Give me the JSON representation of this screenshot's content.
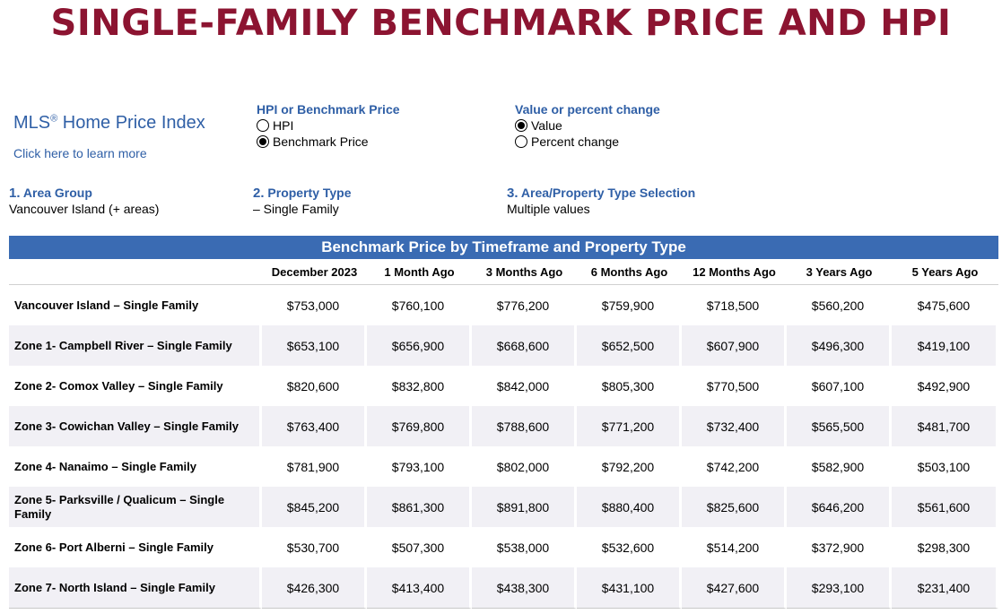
{
  "page_title": "SINGLE-FAMILY BENCHMARK PRICE AND HPI",
  "mls": {
    "title": "MLS",
    "registered": "®",
    "title_rest": " Home Price Index",
    "link": "Click here to learn more"
  },
  "hpi_toggle": {
    "title": "HPI or Benchmark Price",
    "options": [
      {
        "label": "HPI",
        "selected": false
      },
      {
        "label": "Benchmark Price",
        "selected": true
      }
    ]
  },
  "value_toggle": {
    "title": "Value or percent change",
    "options": [
      {
        "label": "Value",
        "selected": true
      },
      {
        "label": "Percent change",
        "selected": false
      }
    ]
  },
  "filters": [
    {
      "number": "1.",
      "label": "Area Group",
      "value": "Vancouver Island (+ areas)"
    },
    {
      "number": "2.",
      "label": "Property Type",
      "value": "– Single Family"
    },
    {
      "number": "3.",
      "label": "Area/Property Type Selection",
      "value": "Multiple values"
    }
  ],
  "table": {
    "title": "Benchmark Price by Timeframe and Property Type",
    "columns": [
      "December 2023",
      "1 Month Ago",
      "3 Months Ago",
      "6 Months Ago",
      "12 Months Ago",
      "3 Years Ago",
      "5 Years Ago"
    ],
    "rows": [
      {
        "label": "Vancouver Island – Single Family",
        "values": [
          "$753,000",
          "$760,100",
          "$776,200",
          "$759,900",
          "$718,500",
          "$560,200",
          "$475,600"
        ]
      },
      {
        "label": "Zone 1- Campbell River – Single Family",
        "values": [
          "$653,100",
          "$656,900",
          "$668,600",
          "$652,500",
          "$607,900",
          "$496,300",
          "$419,100"
        ]
      },
      {
        "label": "Zone 2- Comox Valley – Single Family",
        "values": [
          "$820,600",
          "$832,800",
          "$842,000",
          "$805,300",
          "$770,500",
          "$607,100",
          "$492,900"
        ]
      },
      {
        "label": "Zone 3- Cowichan Valley – Single Family",
        "values": [
          "$763,400",
          "$769,800",
          "$788,600",
          "$771,200",
          "$732,400",
          "$565,500",
          "$481,700"
        ]
      },
      {
        "label": "Zone 4- Nanaimo – Single Family",
        "values": [
          "$781,900",
          "$793,100",
          "$802,000",
          "$792,200",
          "$742,200",
          "$582,900",
          "$503,100"
        ]
      },
      {
        "label": "Zone 5- Parksville / Qualicum – Single Family",
        "values": [
          "$845,200",
          "$861,300",
          "$891,800",
          "$880,400",
          "$825,600",
          "$646,200",
          "$561,600"
        ]
      },
      {
        "label": "Zone 6- Port Alberni – Single Family",
        "values": [
          "$530,700",
          "$507,300",
          "$538,000",
          "$532,600",
          "$514,200",
          "$372,900",
          "$298,300"
        ]
      },
      {
        "label": "Zone 7- North Island – Single Family",
        "values": [
          "$426,300",
          "$413,400",
          "$438,300",
          "$431,100",
          "$427,600",
          "$293,100",
          "$231,400"
        ]
      }
    ]
  },
  "colors": {
    "title": "#8c1431",
    "accent_blue": "#2f5fa6",
    "table_header_bg": "#3a6bb3",
    "row_shade": "#f1f0f5"
  }
}
